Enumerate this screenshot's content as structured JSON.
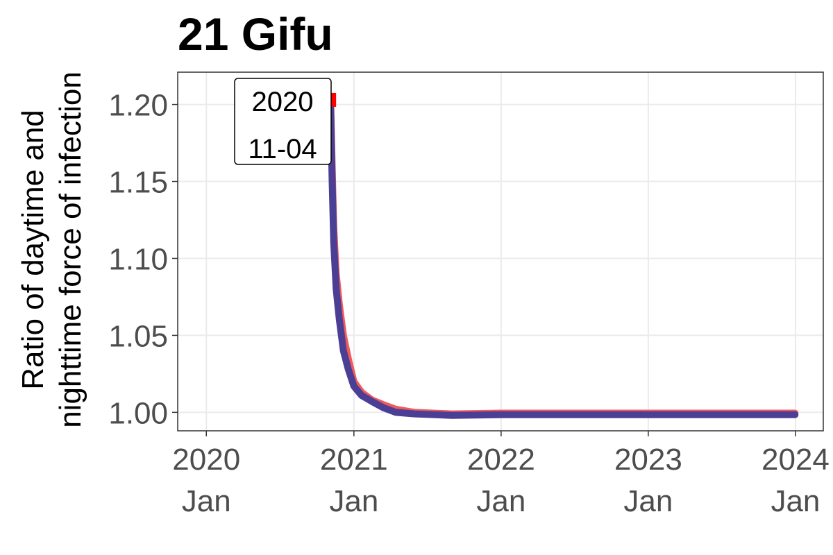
{
  "chart_data": {
    "type": "line",
    "title": "21 Gifu",
    "ylabel_lines": [
      "Ratio of daytime and",
      "nighttime force of infection"
    ],
    "xlabel": "",
    "xlim": [
      "2019-10-22",
      "2024-03-10"
    ],
    "ylim": [
      0.988,
      1.221
    ],
    "y_ticks": [
      1.0,
      1.05,
      1.1,
      1.15,
      1.2
    ],
    "y_tick_labels": [
      "1.00",
      "1.05",
      "1.10",
      "1.15",
      "1.20"
    ],
    "x_ticks": [
      {
        "date": "2020-01-01",
        "line1": "2020",
        "line2": "Jan"
      },
      {
        "date": "2021-01-01",
        "line1": "2021",
        "line2": "Jan"
      },
      {
        "date": "2022-01-01",
        "line1": "2022",
        "line2": "Jan"
      },
      {
        "date": "2023-01-01",
        "line1": "2023",
        "line2": "Jan"
      },
      {
        "date": "2024-01-01",
        "line1": "2024",
        "line2": "Jan"
      }
    ],
    "grid": true,
    "series": [
      {
        "color": "#f05a5a",
        "line_width": 10,
        "points": [
          [
            "2020-11-04",
            1.205
          ],
          [
            "2020-11-08",
            1.16
          ],
          [
            "2020-11-12",
            1.12
          ],
          [
            "2020-11-18",
            1.09
          ],
          [
            "2020-11-26",
            1.07
          ],
          [
            "2020-12-06",
            1.05
          ],
          [
            "2020-12-18",
            1.035
          ],
          [
            "2021-01-01",
            1.02
          ],
          [
            "2021-01-20",
            1.013
          ],
          [
            "2021-02-15",
            1.008
          ],
          [
            "2021-03-15",
            1.005
          ],
          [
            "2021-04-15",
            1.002
          ],
          [
            "2021-06-01",
            1.0
          ],
          [
            "2021-09-01",
            0.999
          ],
          [
            "2022-01-01",
            0.9995
          ],
          [
            "2022-06-01",
            0.9995
          ],
          [
            "2023-01-01",
            0.9995
          ],
          [
            "2023-06-01",
            0.9995
          ],
          [
            "2023-12-31",
            0.9995
          ]
        ]
      },
      {
        "color": "#4b3f95",
        "line_width": 10,
        "points": [
          [
            "2020-11-04",
            1.2
          ],
          [
            "2020-11-08",
            1.15
          ],
          [
            "2020-11-12",
            1.11
          ],
          [
            "2020-11-18",
            1.08
          ],
          [
            "2020-11-26",
            1.06
          ],
          [
            "2020-12-06",
            1.04
          ],
          [
            "2020-12-18",
            1.028
          ],
          [
            "2021-01-01",
            1.017
          ],
          [
            "2021-01-20",
            1.011
          ],
          [
            "2021-02-15",
            1.007
          ],
          [
            "2021-03-15",
            1.003
          ],
          [
            "2021-04-15",
            1.0
          ],
          [
            "2021-06-01",
            0.999
          ],
          [
            "2021-09-01",
            0.998
          ],
          [
            "2022-01-01",
            0.9985
          ],
          [
            "2022-06-01",
            0.9985
          ],
          [
            "2023-01-01",
            0.9985
          ],
          [
            "2023-06-01",
            0.9985
          ],
          [
            "2023-12-31",
            0.9985
          ]
        ]
      }
    ],
    "marker": {
      "date": "2020-11-04",
      "y": 1.203,
      "color": "#ff0000"
    },
    "annotation": {
      "line1": "2020",
      "line2": "11-04",
      "placement": "top-left, next to marker"
    }
  }
}
